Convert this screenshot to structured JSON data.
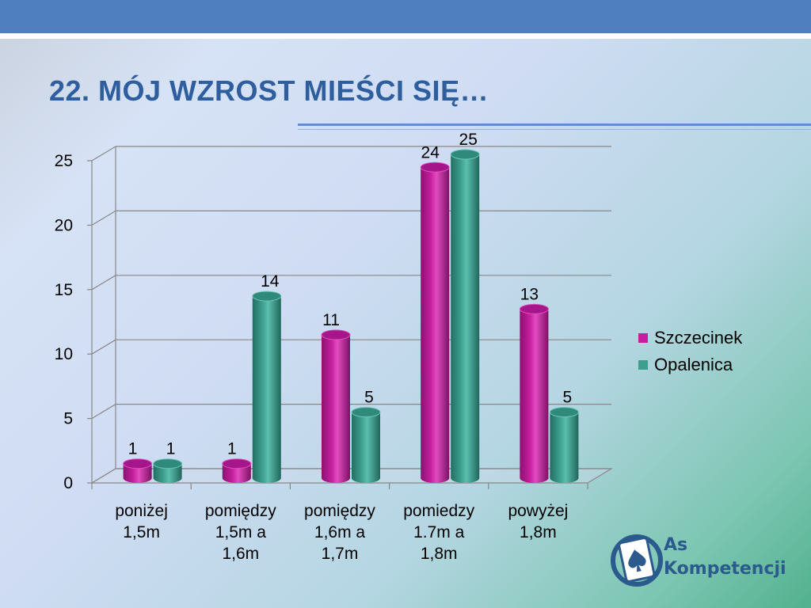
{
  "slide": {
    "title": "22.  MÓJ WZROST MIEŚCI SIĘ…"
  },
  "colors": {
    "header_bar": "#4f7fbf",
    "title": "#2f5e9f",
    "szczecinek": "#c51f9f",
    "opalenica": "#3e9f8f"
  },
  "chart_data": {
    "type": "bar",
    "title": "",
    "xlabel": "",
    "ylabel": "",
    "ylim": [
      0,
      25
    ],
    "yticks": [
      0,
      5,
      10,
      15,
      20,
      25
    ],
    "categories": [
      [
        "poniżej",
        "1,5m"
      ],
      [
        "pomiędzy",
        "1,5m a",
        "1,6m"
      ],
      [
        "pomiędzy",
        "1,6m a",
        "1,7m"
      ],
      [
        "pomiedzy",
        "1.7m a",
        "1,8m"
      ],
      [
        "powyżej",
        "1,8m"
      ]
    ],
    "series": [
      {
        "name": "Szczecinek",
        "values": [
          1,
          1,
          11,
          24,
          13
        ],
        "color": "#c51f9f"
      },
      {
        "name": "Opalenica",
        "values": [
          1,
          14,
          5,
          25,
          5
        ],
        "color": "#3e9f8f"
      }
    ],
    "grid": true,
    "legend_position": "right",
    "style": "3d-cylinder"
  },
  "legend": {
    "items": [
      {
        "label": "Szczecinek",
        "color": "#c51f9f"
      },
      {
        "label": "Opalenica",
        "color": "#3e9f8f"
      }
    ]
  },
  "logo": {
    "line1": "As",
    "line2": "Kompetencji",
    "icon": "spade-card-icon"
  }
}
